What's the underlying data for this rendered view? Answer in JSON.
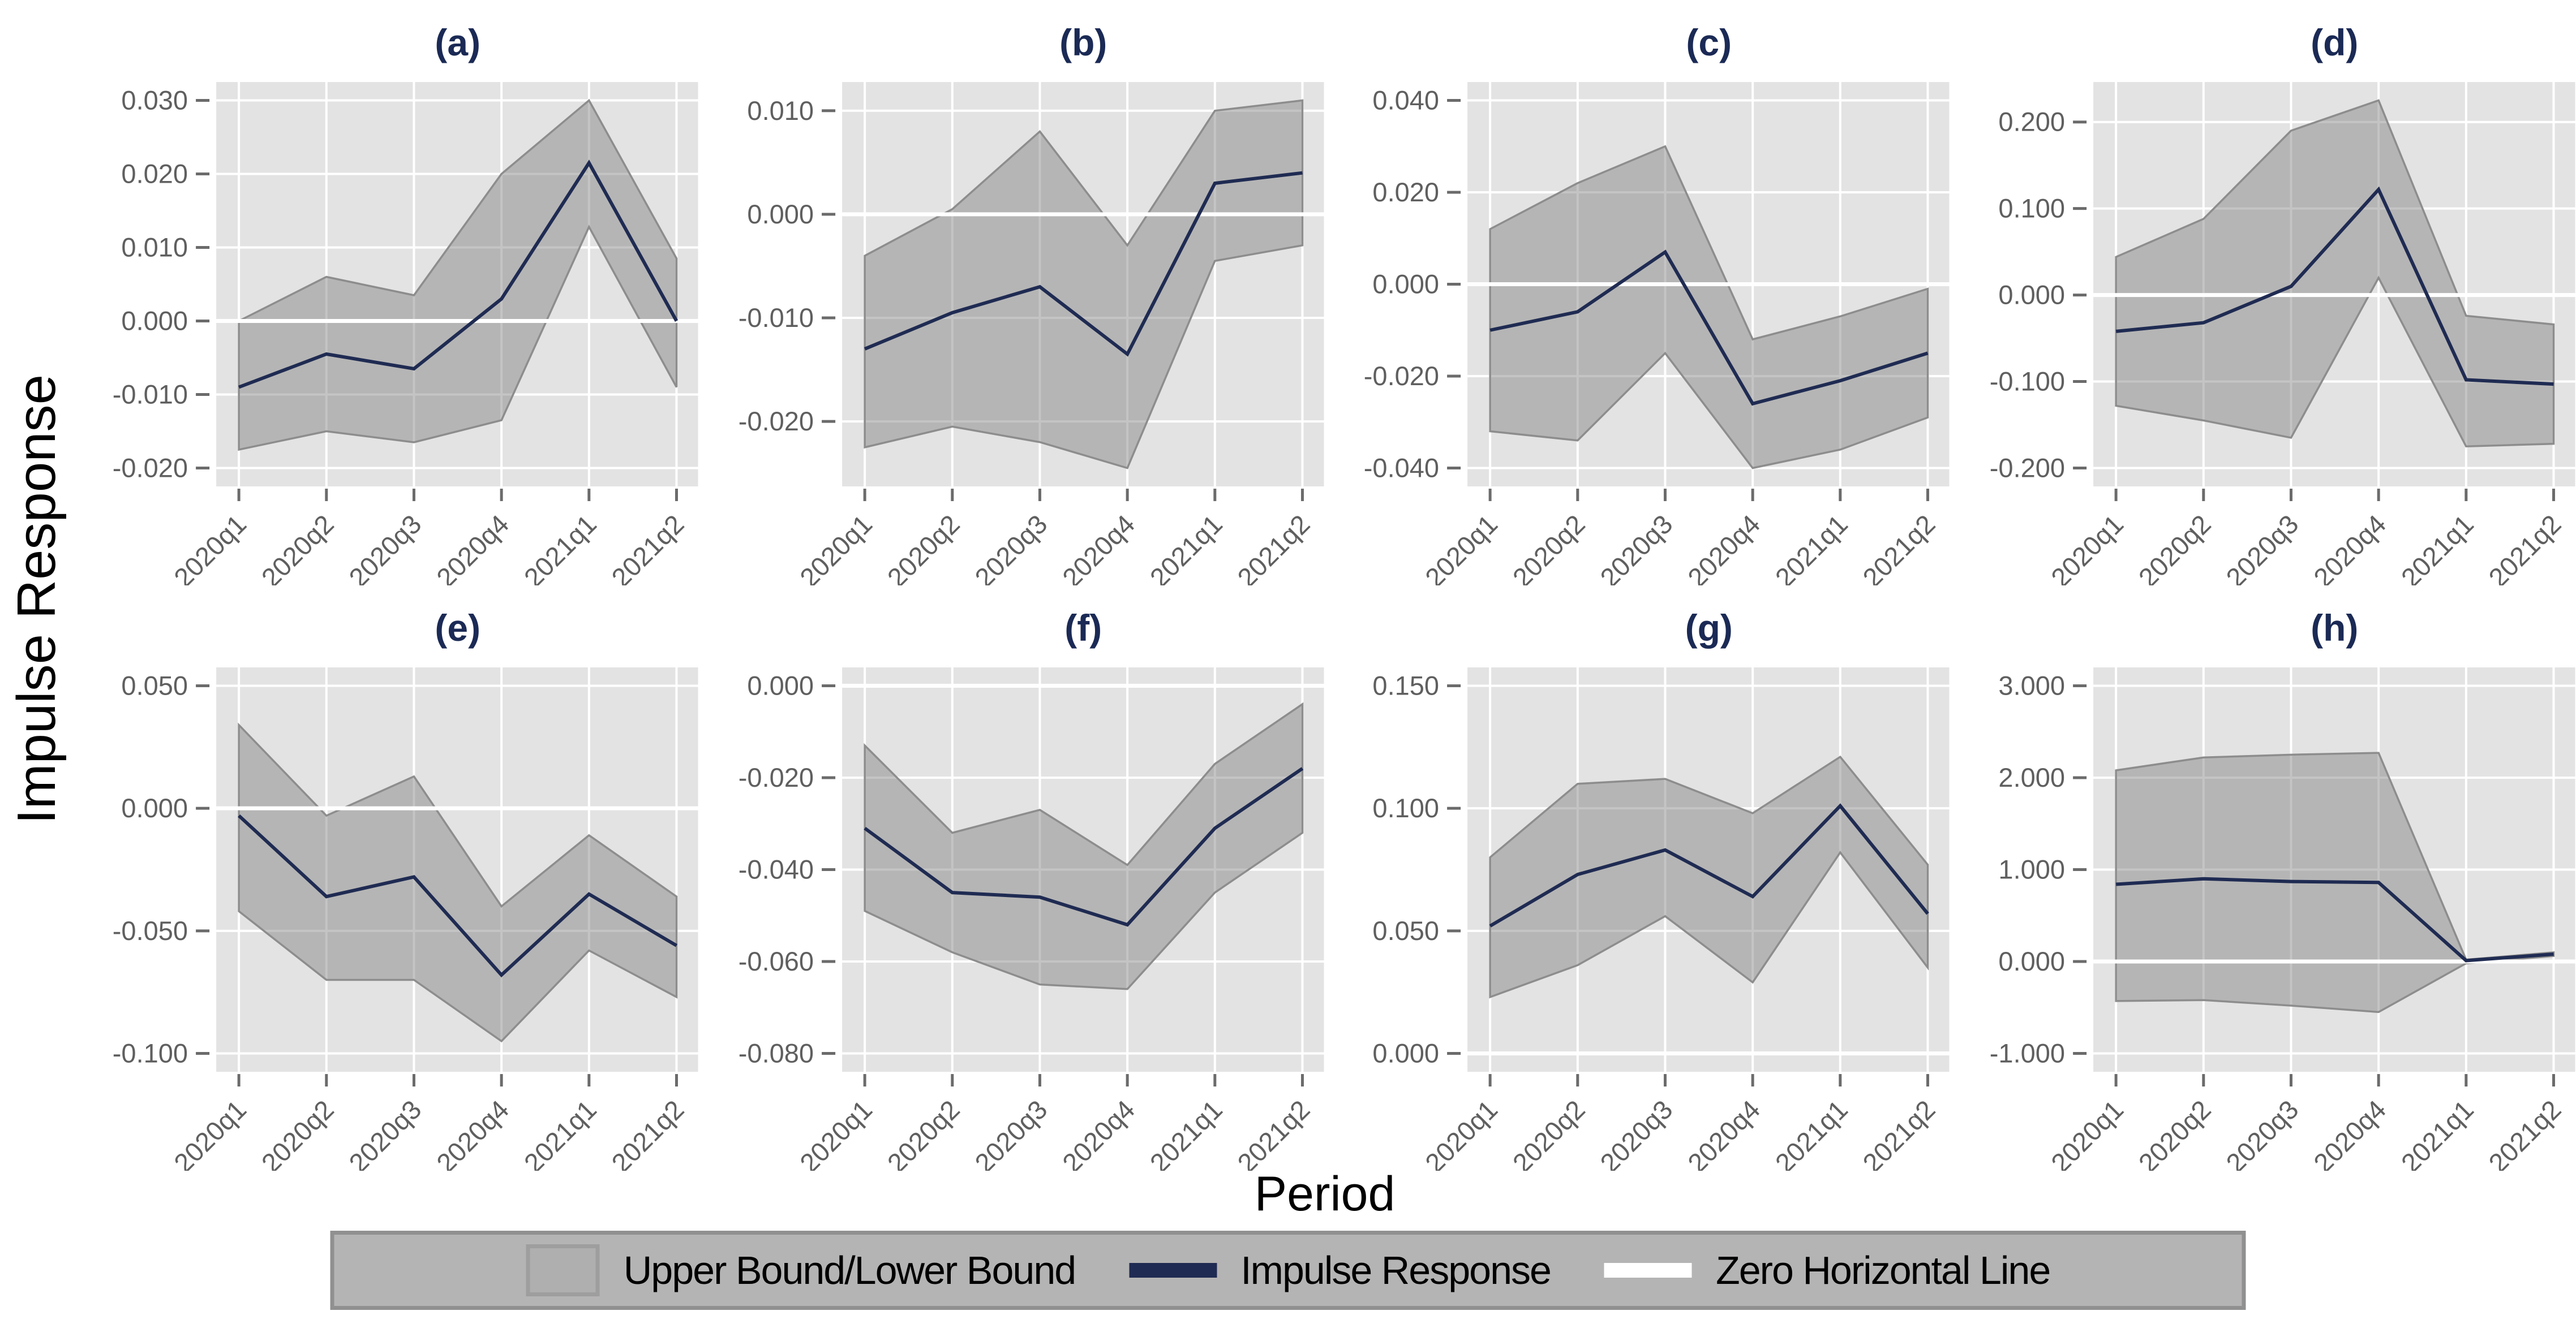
{
  "colors": {
    "impulse_line": "#1f2b52",
    "band_fill": "rgba(130,130,130,0.47)",
    "band_edge": "#8d8d8d",
    "plot_bg": "#e3e3e3",
    "grid": "#ffffff",
    "zero_line": "#ffffff",
    "tick_mark": "#6b6b6b",
    "tick_text": "#5f5f5f",
    "title_text": "#1b2a55",
    "legend_bg": "#b5b4b4",
    "legend_border": "#909090"
  },
  "chart_data": {
    "type": "line",
    "subtype": "impulse-response-with-confidence-bands",
    "categories": [
      "2020q1",
      "2020q2",
      "2020q3",
      "2020q4",
      "2021q1",
      "2021q2"
    ],
    "xlabel": "Period",
    "ylabel": "Impulse Response",
    "grid": "on",
    "legend_position": "bottom",
    "legend": [
      {
        "label": "Upper Bound/Lower Bound",
        "type": "band"
      },
      {
        "label": "Impulse Response",
        "type": "line",
        "color": "#1f2b52"
      },
      {
        "label": "Zero Horizontal Line",
        "type": "line",
        "color": "#ffffff"
      }
    ],
    "panels": [
      {
        "title": "(a)",
        "yticks": [
          0.03,
          0.02,
          0.01,
          0.0,
          -0.01,
          -0.02
        ],
        "series": {
          "upper_bound": [
            0.0,
            0.006,
            0.0035,
            0.02,
            0.03,
            0.0085
          ],
          "impulse_response": [
            -0.009,
            -0.0045,
            -0.0065,
            0.003,
            0.0215,
            0.0
          ],
          "lower_bound": [
            -0.0175,
            -0.015,
            -0.0165,
            -0.0135,
            0.0128,
            -0.009
          ]
        }
      },
      {
        "title": "(b)",
        "yticks": [
          0.01,
          0.0,
          -0.01,
          -0.02
        ],
        "series": {
          "upper_bound": [
            -0.004,
            0.0005,
            0.008,
            -0.003,
            0.01,
            0.011
          ],
          "impulse_response": [
            -0.013,
            -0.0095,
            -0.007,
            -0.0135,
            0.003,
            0.004
          ],
          "lower_bound": [
            -0.0225,
            -0.0205,
            -0.022,
            -0.0245,
            -0.0045,
            -0.003
          ]
        }
      },
      {
        "title": "(c)",
        "yticks": [
          0.04,
          0.02,
          0.0,
          -0.02,
          -0.04
        ],
        "series": {
          "upper_bound": [
            0.012,
            0.022,
            0.03,
            -0.012,
            -0.007,
            -0.001
          ],
          "impulse_response": [
            -0.01,
            -0.006,
            0.007,
            -0.026,
            -0.021,
            -0.015
          ],
          "lower_bound": [
            -0.032,
            -0.034,
            -0.015,
            -0.04,
            -0.036,
            -0.029
          ]
        }
      },
      {
        "title": "(d)",
        "yticks": [
          0.2,
          0.1,
          0.0,
          -0.1,
          -0.2
        ],
        "series": {
          "upper_bound": [
            0.044,
            0.088,
            0.19,
            0.225,
            -0.024,
            -0.034
          ],
          "impulse_response": [
            -0.042,
            -0.032,
            0.01,
            0.122,
            -0.098,
            -0.103
          ],
          "lower_bound": [
            -0.128,
            -0.145,
            -0.165,
            0.02,
            -0.175,
            -0.172
          ]
        }
      },
      {
        "title": "(e)",
        "yticks": [
          0.05,
          0.0,
          -0.05,
          -0.1
        ],
        "series": {
          "upper_bound": [
            0.034,
            -0.003,
            0.013,
            -0.04,
            -0.011,
            -0.036
          ],
          "impulse_response": [
            -0.003,
            -0.036,
            -0.028,
            -0.068,
            -0.035,
            -0.056
          ],
          "lower_bound": [
            -0.042,
            -0.07,
            -0.07,
            -0.095,
            -0.058,
            -0.077
          ]
        }
      },
      {
        "title": "(f)",
        "yticks": [
          0.0,
          -0.02,
          -0.04,
          -0.06,
          -0.08
        ],
        "series": {
          "upper_bound": [
            -0.013,
            -0.032,
            -0.027,
            -0.039,
            -0.017,
            -0.004
          ],
          "impulse_response": [
            -0.031,
            -0.045,
            -0.046,
            -0.052,
            -0.031,
            -0.018
          ],
          "lower_bound": [
            -0.049,
            -0.058,
            -0.065,
            -0.066,
            -0.045,
            -0.032
          ]
        }
      },
      {
        "title": "(g)",
        "yticks": [
          0.15,
          0.1,
          0.05,
          0.0
        ],
        "series": {
          "upper_bound": [
            0.08,
            0.11,
            0.112,
            0.098,
            0.121,
            0.077
          ],
          "impulse_response": [
            0.052,
            0.073,
            0.083,
            0.064,
            0.101,
            0.057
          ],
          "lower_bound": [
            0.023,
            0.036,
            0.056,
            0.029,
            0.082,
            0.035
          ]
        }
      },
      {
        "title": "(h)",
        "yticks": [
          3.0,
          2.0,
          1.0,
          0.0,
          -1.0
        ],
        "series": {
          "upper_bound": [
            2.08,
            2.22,
            2.25,
            2.27,
            0.02,
            0.1
          ],
          "impulse_response": [
            0.84,
            0.9,
            0.87,
            0.86,
            0.01,
            0.08
          ],
          "lower_bound": [
            -0.43,
            -0.42,
            -0.48,
            -0.55,
            -0.02,
            0.06
          ]
        }
      }
    ]
  }
}
